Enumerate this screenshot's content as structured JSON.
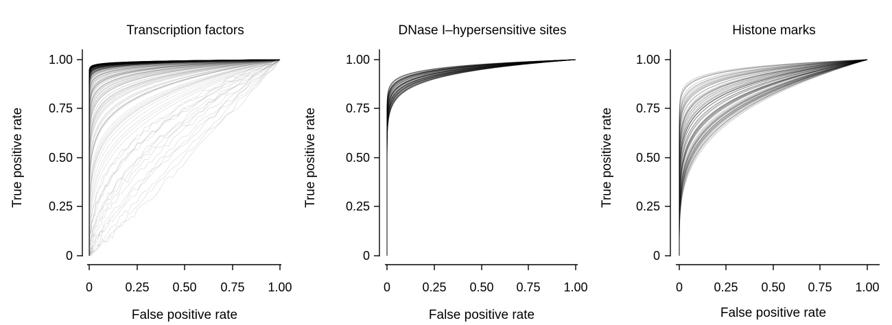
{
  "figure": {
    "line_color": "#000000",
    "background": "#ffffff"
  },
  "chart_data": [
    {
      "type": "line",
      "title": "Transcription factors",
      "xlabel": "False positive rate",
      "ylabel": "True positive rate",
      "xlim": [
        0,
        1
      ],
      "ylim": [
        0,
        1
      ],
      "x_ticks": [
        "0",
        "0.25",
        "0.50",
        "0.75",
        "1.00"
      ],
      "y_ticks": [
        "0",
        "0.25",
        "0.50",
        "0.75",
        "1.00"
      ],
      "grid": false,
      "legend": "none",
      "curve_count": 140,
      "curve_shape_range": [
        0.008,
        1.0
      ],
      "curve_color": "#000000",
      "representative_series": [
        {
          "x": [
            0,
            0.05,
            0.1,
            0.25,
            0.5,
            0.75,
            1.0
          ],
          "y": [
            0,
            0.86,
            0.93,
            0.98,
            1.0,
            1.0,
            1.0
          ]
        },
        {
          "x": [
            0,
            0.05,
            0.1,
            0.25,
            0.5,
            0.75,
            1.0
          ],
          "y": [
            0,
            0.55,
            0.68,
            0.84,
            0.94,
            0.98,
            1.0
          ]
        },
        {
          "x": [
            0,
            0.1,
            0.25,
            0.5,
            0.75,
            0.9,
            1.0
          ],
          "y": [
            0,
            0.33,
            0.52,
            0.7,
            0.8,
            0.95,
            1.0
          ]
        }
      ]
    },
    {
      "type": "line",
      "title": "DNase I–hypersensitive sites",
      "xlabel": "False positive rate",
      "ylabel": "True positive rate",
      "xlim": [
        0,
        1
      ],
      "ylim": [
        0,
        1
      ],
      "x_ticks": [
        "0",
        "0.25",
        "0.50",
        "0.75",
        "1.00"
      ],
      "y_ticks": [
        "0",
        "0.25",
        "0.50",
        "0.75",
        "1.00"
      ],
      "grid": false,
      "legend": "none",
      "curve_count": 70,
      "curve_shape_range": [
        0.035,
        0.075
      ],
      "curve_color": "#000000",
      "representative_series": [
        {
          "x": [
            0,
            0.1,
            0.25,
            0.5,
            0.75,
            1.0
          ],
          "y": [
            0,
            0.84,
            0.95,
            0.99,
            1.0,
            1.0
          ]
        },
        {
          "x": [
            0,
            0.1,
            0.25,
            0.5,
            0.75,
            1.0
          ],
          "y": [
            0,
            0.73,
            0.9,
            0.98,
            1.0,
            1.0
          ]
        }
      ]
    },
    {
      "type": "line",
      "title": "Histone marks",
      "xlabel": "False positive rate",
      "ylabel": "True positive rate",
      "xlim": [
        0,
        1
      ],
      "ylim": [
        0,
        1
      ],
      "x_ticks": [
        "0",
        "0.25",
        "0.50",
        "0.75",
        "1.00"
      ],
      "y_ticks": [
        "0",
        "0.25",
        "0.50",
        "0.75",
        "1.00"
      ],
      "grid": false,
      "legend": "none",
      "curve_count": 80,
      "curve_shape_range": [
        0.04,
        0.28
      ],
      "curve_color": "#000000",
      "representative_series": [
        {
          "x": [
            0,
            0.1,
            0.25,
            0.5,
            0.75,
            1.0
          ],
          "y": [
            0,
            0.8,
            0.95,
            0.99,
            1.0,
            1.0
          ]
        },
        {
          "x": [
            0,
            0.1,
            0.25,
            0.5,
            0.75,
            1.0
          ],
          "y": [
            0,
            0.48,
            0.72,
            0.9,
            0.97,
            1.0
          ]
        },
        {
          "x": [
            0,
            0.1,
            0.25,
            0.5,
            0.75,
            1.0
          ],
          "y": [
            0,
            0.3,
            0.55,
            0.8,
            0.93,
            1.0
          ]
        }
      ]
    }
  ]
}
